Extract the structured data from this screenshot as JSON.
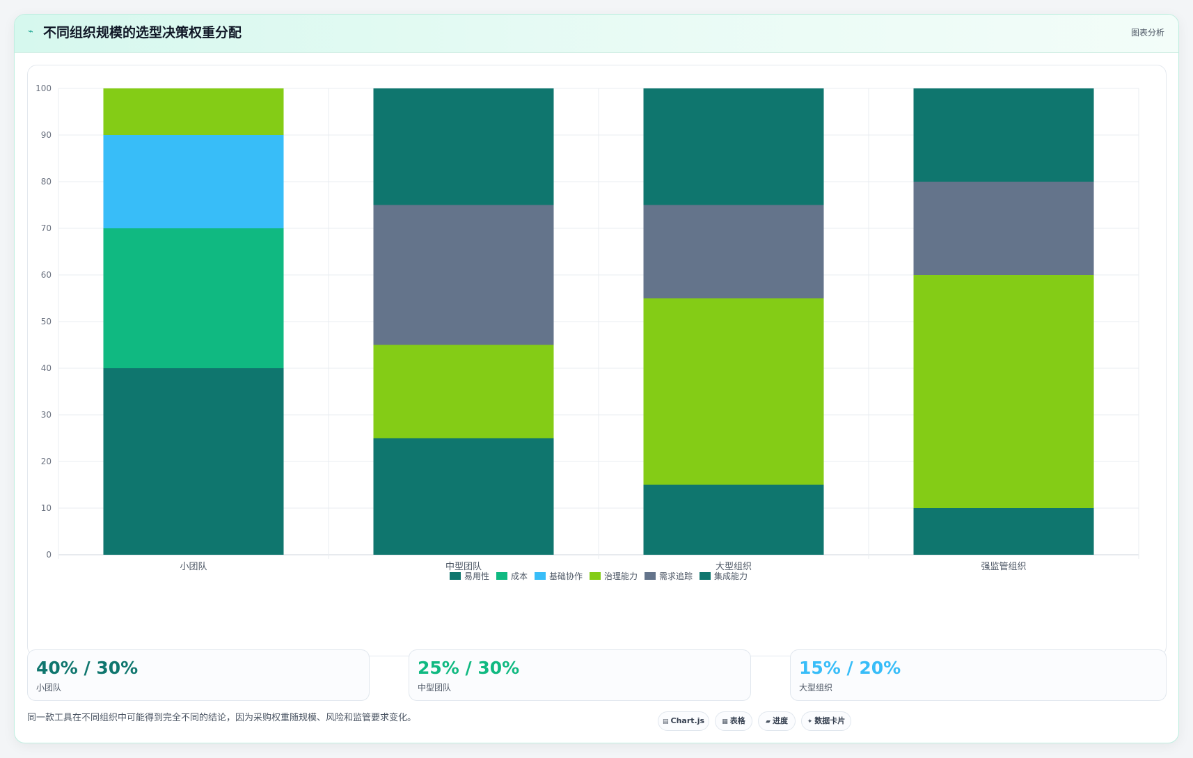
{
  "header": {
    "title": "不同组织规模的选型决策权重分配",
    "tag": "图表分析"
  },
  "chart_data": {
    "type": "bar",
    "stacked": true,
    "categories": [
      "小团队",
      "中型团队",
      "大型组织",
      "强监管组织"
    ],
    "series": [
      {
        "name": "易用性",
        "color": "#0f766e",
        "values": [
          40,
          25,
          15,
          10
        ]
      },
      {
        "name": "成本",
        "color": "#10b981",
        "values": [
          30,
          0,
          0,
          0
        ]
      },
      {
        "name": "基础协作",
        "color": "#38bdf8",
        "values": [
          20,
          0,
          0,
          0
        ]
      },
      {
        "name": "治理能力",
        "color": "#84cc16",
        "values": [
          10,
          20,
          40,
          50
        ]
      },
      {
        "name": "需求追踪",
        "color": "#64748b",
        "values": [
          0,
          30,
          20,
          20
        ]
      },
      {
        "name": "集成能力",
        "color": "#0f766e",
        "values": [
          0,
          25,
          25,
          20
        ]
      }
    ],
    "ylim": [
      0,
      100
    ],
    "yticks": [
      0,
      10,
      20,
      30,
      40,
      50,
      60,
      70,
      80,
      90,
      100
    ],
    "grid": true,
    "legend": "bottom"
  },
  "kpis": [
    {
      "value": "40% / 30%",
      "label": "小团队",
      "color": "#0f766e"
    },
    {
      "value": "25% / 30%",
      "label": "中型团队",
      "color": "#10b981"
    },
    {
      "value": "15% / 20%",
      "label": "大型组织",
      "color": "#38bdf8"
    }
  ],
  "footnote": "同一款工具在不同组织中可能得到完全不同的结论，因为采购权重随规模、风险和监管要求变化。",
  "chips": [
    {
      "icon": "table-icon",
      "label": "Chart.js"
    },
    {
      "icon": "grid-icon",
      "label": "表格"
    },
    {
      "icon": "progress-icon",
      "label": "进度"
    },
    {
      "icon": "sparkle-icon",
      "label": "数据卡片"
    }
  ]
}
